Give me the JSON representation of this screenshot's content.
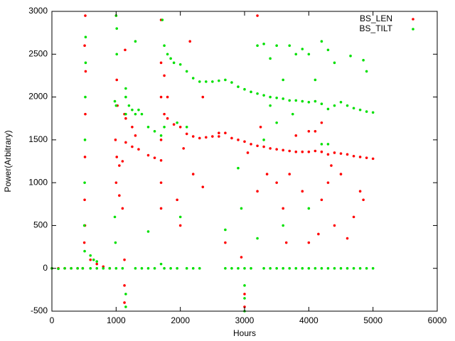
{
  "chart_data": {
    "type": "scatter",
    "xlabel": "Hours",
    "ylabel": "Power(Arbitrary)",
    "xlim": [
      0,
      6000
    ],
    "xticks": [
      0,
      1000,
      2000,
      3000,
      4000,
      5000,
      6000
    ],
    "ylim": [
      -500,
      3000
    ],
    "yticks": [
      -500,
      0,
      500,
      1000,
      1500,
      2000,
      2500,
      3000
    ],
    "grid": false,
    "legend": "top-right",
    "series": [
      {
        "name": "BS_LEN",
        "color": "#ff0000",
        "x": [
          0,
          100,
          200,
          300,
          400,
          480,
          505,
          510,
          515,
          520,
          525,
          520,
          510,
          515,
          600,
          700,
          800,
          900,
          990,
          1000,
          1010,
          1050,
          1100,
          1000,
          1010,
          1020,
          1050,
          1100,
          1130,
          1130,
          1130,
          1140,
          1130,
          1150,
          1250,
          1350,
          1500,
          1600,
          1700,
          1150,
          1250,
          1300,
          1700,
          1700,
          1700,
          1700,
          1700,
          1700,
          1750,
          1800,
          1750,
          1800,
          1900,
          2000,
          2100,
          2200,
          2300,
          2400,
          2500,
          2600,
          2700,
          2800,
          2900,
          3000,
          3100,
          3200,
          3300,
          3400,
          3500,
          3600,
          3700,
          3800,
          3900,
          4000,
          4100,
          4200,
          4300,
          4400,
          4500,
          4600,
          4700,
          4800,
          4900,
          5000,
          1950,
          2000,
          2050,
          2150,
          2200,
          2350,
          2700,
          2950,
          3000,
          3000,
          3200,
          3200,
          3250,
          3350,
          3500,
          3600,
          3650,
          3700,
          3900,
          4000,
          4000,
          4150,
          4200,
          4200,
          4300,
          4350,
          4400,
          4500,
          4600,
          4700,
          4800,
          4850,
          2350,
          2600,
          3050,
          3800,
          4100
        ],
        "values": [
          0,
          0,
          0,
          0,
          0,
          0,
          300,
          800,
          1300,
          1800,
          2300,
          2950,
          2600,
          500,
          100,
          50,
          20,
          0,
          1500,
          1000,
          1300,
          1200,
          1250,
          2950,
          2200,
          1900,
          850,
          700,
          -200,
          100,
          1800,
          2550,
          -400,
          1470,
          1420,
          1390,
          1320,
          1290,
          1260,
          1750,
          1650,
          1550,
          2900,
          2400,
          2000,
          1500,
          1000,
          700,
          2250,
          2000,
          1800,
          1750,
          1680,
          1650,
          1570,
          1540,
          1520,
          1530,
          1540,
          1540,
          1580,
          1520,
          1500,
          1480,
          1450,
          1430,
          1420,
          1400,
          1390,
          1380,
          1370,
          1360,
          1360,
          1360,
          1370,
          1360,
          1330,
          1350,
          1340,
          1330,
          1310,
          1300,
          1290,
          1280,
          800,
          500,
          1400,
          2650,
          1100,
          950,
          300,
          130,
          -300,
          -450,
          2950,
          900,
          1650,
          1100,
          1000,
          700,
          300,
          1100,
          900,
          300,
          1600,
          400,
          1700,
          800,
          1000,
          1200,
          500,
          1100,
          350,
          600,
          900,
          800,
          2000,
          1580,
          1350,
          1550,
          1600
        ]
      },
      {
        "name": "BS_TILT",
        "color": "#00e000",
        "x": [
          0,
          100,
          200,
          300,
          400,
          480,
          600,
          700,
          800,
          900,
          1000,
          1100,
          505,
          510,
          515,
          520,
          525,
          525,
          510,
          600,
          650,
          700,
          980,
          990,
          1000,
          1010,
          1000,
          1010,
          980,
          1150,
          1150,
          1150,
          1150,
          1150,
          1200,
          1250,
          1300,
          1300,
          1350,
          1400,
          1300,
          1400,
          1500,
          1600,
          1750,
          1850,
          1950,
          2100,
          2200,
          2300,
          2700,
          2800,
          2900,
          3000,
          3100,
          3300,
          3400,
          3500,
          3600,
          3700,
          3800,
          3900,
          4000,
          4100,
          4200,
          4300,
          4400,
          4500,
          4600,
          4700,
          4800,
          4900,
          5000,
          1500,
          1600,
          1700,
          1720,
          1750,
          1800,
          1850,
          1900,
          2000,
          2100,
          2200,
          2300,
          2400,
          2500,
          2600,
          2700,
          2800,
          2900,
          3000,
          3100,
          3200,
          3300,
          3400,
          3500,
          3600,
          3700,
          3800,
          3900,
          4000,
          4100,
          4200,
          4300,
          4400,
          4500,
          4600,
          4700,
          4800,
          4900,
          5000,
          1500,
          1700,
          1750,
          1950,
          2000,
          2100,
          2700,
          2900,
          2950,
          3000,
          3000,
          3000,
          3200,
          3200,
          3300,
          3400,
          3500,
          3600,
          3600,
          3700,
          3800,
          3900,
          4000,
          4000,
          4100,
          4200,
          4200,
          4300,
          4400,
          4650,
          4850,
          4900,
          3300,
          3500,
          4300,
          3400,
          3750
        ],
        "values": [
          0,
          -5,
          0,
          0,
          0,
          0,
          0,
          0,
          0,
          0,
          0,
          0,
          500,
          1000,
          1500,
          2000,
          2400,
          2700,
          200,
          150,
          100,
          80,
          600,
          300,
          1900,
          2500,
          2950,
          2800,
          1950,
          2100,
          2000,
          1800,
          -450,
          -300,
          1900,
          1850,
          2650,
          1800,
          1850,
          1800,
          0,
          0,
          0,
          0,
          0,
          0,
          0,
          0,
          0,
          0,
          0,
          0,
          0,
          0,
          0,
          0,
          0,
          0,
          0,
          0,
          0,
          0,
          0,
          0,
          0,
          0,
          0,
          0,
          0,
          0,
          0,
          0,
          0,
          1650,
          1600,
          1550,
          2900,
          2600,
          2500,
          2450,
          2400,
          2380,
          2300,
          2220,
          2180,
          2180,
          2180,
          2190,
          2200,
          2170,
          2120,
          2090,
          2060,
          2040,
          2020,
          2000,
          1990,
          1980,
          1960,
          1960,
          1950,
          1940,
          1950,
          1920,
          1860,
          1900,
          1940,
          1900,
          1870,
          1850,
          1830,
          1820,
          430,
          50,
          1650,
          1700,
          600,
          1650,
          450,
          1170,
          700,
          -200,
          -350,
          -500,
          2600,
          350,
          2620,
          2450,
          2600,
          500,
          2200,
          2600,
          2500,
          2560,
          700,
          2500,
          2200,
          2650,
          1450,
          2550,
          2400,
          2480,
          2430,
          2300,
          1500,
          1700,
          1450,
          1900,
          1800
        ]
      }
    ]
  }
}
